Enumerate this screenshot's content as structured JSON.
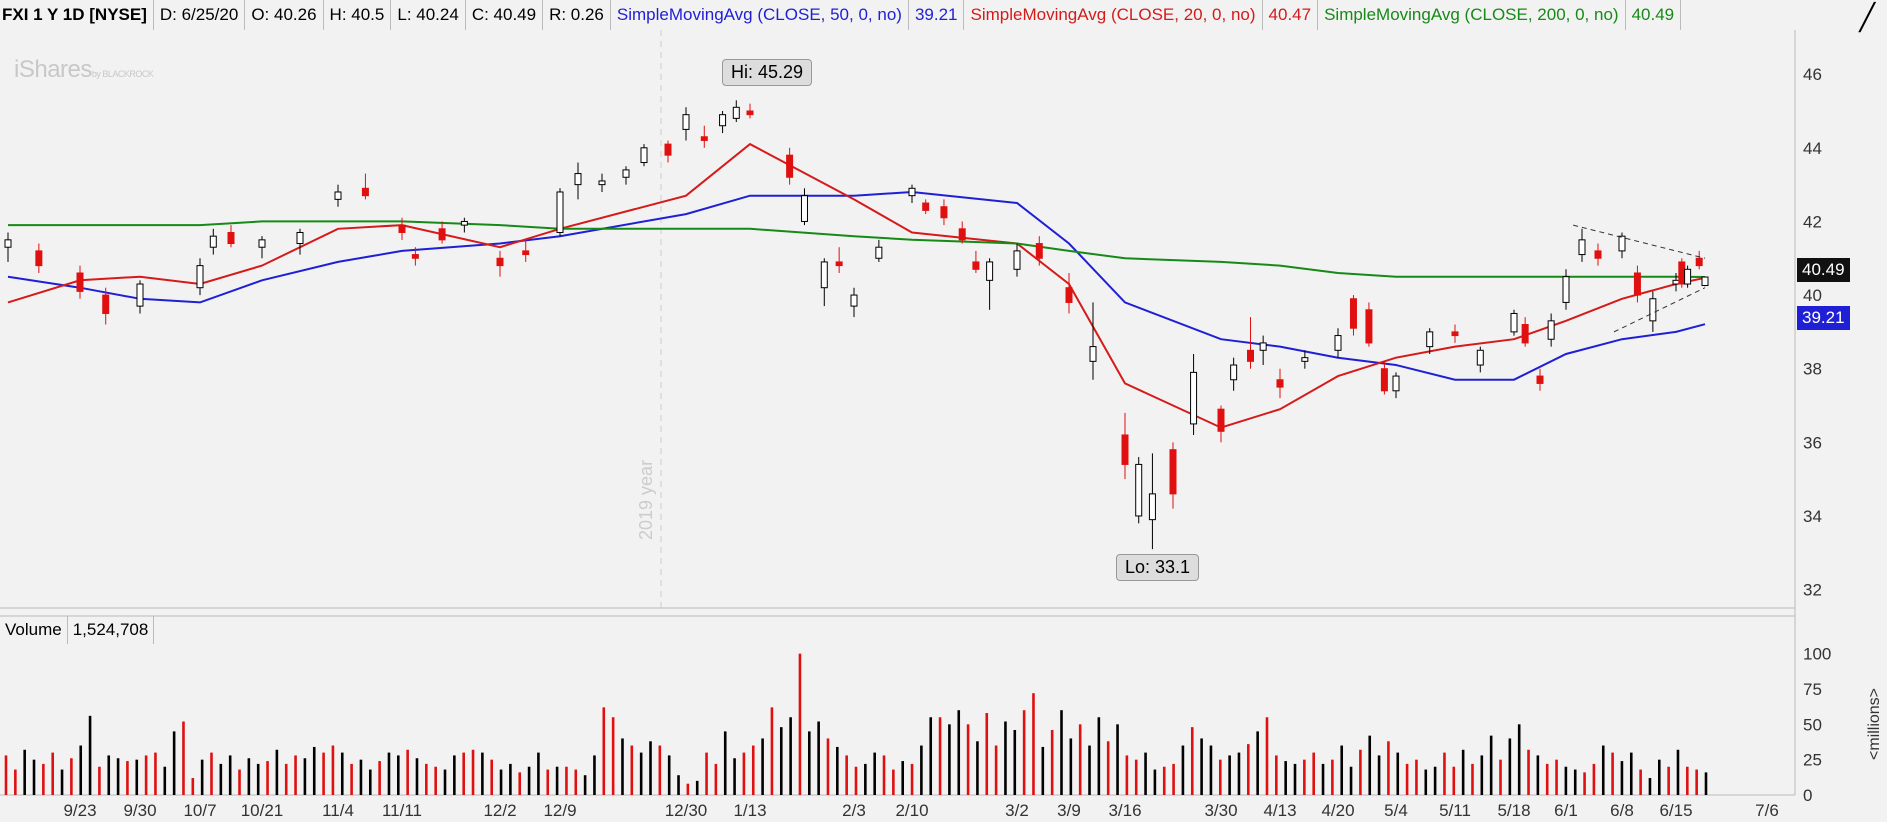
{
  "header": {
    "symbol": "FXI 1 Y 1D [NYSE]",
    "date": "D: 6/25/20",
    "open": "O: 40.26",
    "high": "H: 40.5",
    "low": "L: 40.24",
    "close": "C: 40.49",
    "range": "R: 0.26",
    "sma50_label": "SimpleMovingAvg (CLOSE, 50, 0, no)",
    "sma50_value": "39.21",
    "sma20_label": "SimpleMovingAvg (CLOSE, 20, 0, no)",
    "sma20_value": "40.47",
    "sma200_label": "SimpleMovingAvg (CLOSE, 200, 0, no)",
    "sma200_value": "40.49"
  },
  "logo": {
    "text": "iShares",
    "sub": "by BLACKROCK"
  },
  "hi_label": "Hi: 45.29",
  "lo_label": "Lo: 33.1",
  "year_marker": "2019 year",
  "price_tag": "40.49",
  "sma_tag": "39.21",
  "volume": {
    "label": "Volume",
    "value": "1,524,708",
    "unit": "<millions>"
  },
  "colors": {
    "up": "#000000",
    "down": "#e01010",
    "sma50": "#1f1fd6",
    "sma20": "#d51a1a",
    "sma200": "#168a16"
  },
  "chart_data": [
    {
      "type": "line",
      "title": "FXI 1 Y 1D [NYSE]",
      "y_ticks": [
        32,
        34,
        36,
        38,
        40,
        42,
        44,
        46
      ],
      "ylim": [
        31.5,
        47.2
      ],
      "x_ticks": [
        "9/23",
        "9/30",
        "10/7",
        "10/21",
        "11/4",
        "11/11",
        "12/2",
        "12/9",
        "12/30",
        "1/13",
        "2/3",
        "2/10",
        "3/2",
        "3/9",
        "3/16",
        "3/30",
        "4/13",
        "4/20",
        "5/4",
        "5/11",
        "5/18",
        "6/1",
        "6/8",
        "6/15",
        "7/6"
      ],
      "series": [
        {
          "name": "SimpleMovingAvg (CLOSE, 50, 0, no)",
          "color": "#1f1fd6",
          "x": [
            "9/16",
            "9/23",
            "9/30",
            "10/7",
            "10/21",
            "11/4",
            "11/11",
            "12/2",
            "12/9",
            "12/30",
            "1/13",
            "2/3",
            "2/10",
            "3/2",
            "3/9",
            "3/16",
            "3/30",
            "4/13",
            "4/20",
            "5/4",
            "5/11",
            "5/18",
            "6/1",
            "6/8",
            "6/15",
            "6/25"
          ],
          "values": [
            40.5,
            40.2,
            39.9,
            39.8,
            40.4,
            40.9,
            41.2,
            41.4,
            41.6,
            42.2,
            42.7,
            42.7,
            42.8,
            42.5,
            41.4,
            39.8,
            38.8,
            38.6,
            38.3,
            38.1,
            37.7,
            37.7,
            38.4,
            38.8,
            39.0,
            39.21
          ]
        },
        {
          "name": "SimpleMovingAvg (CLOSE, 20, 0, no)",
          "color": "#d51a1a",
          "x": [
            "9/16",
            "9/23",
            "9/30",
            "10/7",
            "10/21",
            "11/4",
            "11/11",
            "12/2",
            "12/9",
            "12/30",
            "1/13",
            "2/3",
            "2/10",
            "3/2",
            "3/9",
            "3/16",
            "3/30",
            "4/13",
            "4/20",
            "5/4",
            "5/11",
            "5/18",
            "6/1",
            "6/8",
            "6/15",
            "6/25"
          ],
          "values": [
            39.8,
            40.4,
            40.5,
            40.3,
            40.8,
            41.8,
            41.9,
            41.3,
            41.8,
            42.7,
            44.1,
            42.6,
            41.7,
            41.4,
            40.3,
            37.6,
            36.4,
            36.9,
            37.8,
            38.3,
            38.6,
            38.8,
            39.3,
            39.9,
            40.3,
            40.47
          ]
        },
        {
          "name": "SimpleMovingAvg (CLOSE, 200, 0, no)",
          "color": "#168a16",
          "x": [
            "9/16",
            "9/23",
            "9/30",
            "10/7",
            "10/21",
            "11/4",
            "11/11",
            "12/2",
            "12/9",
            "12/30",
            "1/13",
            "2/3",
            "2/10",
            "3/2",
            "3/9",
            "3/16",
            "3/30",
            "4/13",
            "4/20",
            "5/4",
            "5/11",
            "5/18",
            "6/1",
            "6/8",
            "6/15",
            "6/25"
          ],
          "values": [
            41.9,
            41.9,
            41.9,
            41.9,
            42.0,
            42.0,
            42.0,
            41.9,
            41.8,
            41.8,
            41.8,
            41.6,
            41.5,
            41.4,
            41.2,
            41.0,
            40.9,
            40.8,
            40.6,
            40.5,
            40.5,
            40.5,
            40.5,
            40.5,
            40.5,
            40.49
          ]
        }
      ],
      "candles": [
        {
          "d": "9/16",
          "o": 41.3,
          "h": 41.7,
          "l": 40.9,
          "c": 41.5
        },
        {
          "d": "9/19",
          "o": 41.2,
          "h": 41.4,
          "l": 40.6,
          "c": 40.8
        },
        {
          "d": "9/23",
          "o": 40.6,
          "h": 40.8,
          "l": 39.9,
          "c": 40.1
        },
        {
          "d": "9/26",
          "o": 40.0,
          "h": 40.2,
          "l": 39.2,
          "c": 39.5
        },
        {
          "d": "9/30",
          "o": 39.7,
          "h": 40.4,
          "l": 39.5,
          "c": 40.3
        },
        {
          "d": "10/7",
          "o": 40.2,
          "h": 41.0,
          "l": 40.0,
          "c": 40.8
        },
        {
          "d": "10/10",
          "o": 41.3,
          "h": 41.8,
          "l": 41.1,
          "c": 41.6
        },
        {
          "d": "10/14",
          "o": 41.7,
          "h": 41.9,
          "l": 41.3,
          "c": 41.4
        },
        {
          "d": "10/21",
          "o": 41.3,
          "h": 41.6,
          "l": 41.0,
          "c": 41.5
        },
        {
          "d": "10/28",
          "o": 41.4,
          "h": 41.8,
          "l": 41.1,
          "c": 41.7
        },
        {
          "d": "11/4",
          "o": 42.6,
          "h": 43.0,
          "l": 42.4,
          "c": 42.8
        },
        {
          "d": "11/7",
          "o": 42.9,
          "h": 43.3,
          "l": 42.6,
          "c": 42.7
        },
        {
          "d": "11/11",
          "o": 41.9,
          "h": 42.1,
          "l": 41.5,
          "c": 41.7
        },
        {
          "d": "11/14",
          "o": 41.1,
          "h": 41.3,
          "l": 40.8,
          "c": 41.0
        },
        {
          "d": "11/20",
          "o": 41.8,
          "h": 42.0,
          "l": 41.4,
          "c": 41.5
        },
        {
          "d": "11/25",
          "o": 41.9,
          "h": 42.1,
          "l": 41.7,
          "c": 42.0
        },
        {
          "d": "12/2",
          "o": 41.0,
          "h": 41.2,
          "l": 40.5,
          "c": 40.8
        },
        {
          "d": "12/5",
          "o": 41.2,
          "h": 41.5,
          "l": 40.9,
          "c": 41.1
        },
        {
          "d": "12/9",
          "o": 41.7,
          "h": 42.9,
          "l": 41.6,
          "c": 42.8
        },
        {
          "d": "12/12",
          "o": 43.0,
          "h": 43.6,
          "l": 42.6,
          "c": 43.3
        },
        {
          "d": "12/16",
          "o": 43.0,
          "h": 43.3,
          "l": 42.8,
          "c": 43.1
        },
        {
          "d": "12/20",
          "o": 43.2,
          "h": 43.5,
          "l": 43.0,
          "c": 43.4
        },
        {
          "d": "12/23",
          "o": 43.6,
          "h": 44.1,
          "l": 43.5,
          "c": 44.0
        },
        {
          "d": "12/27",
          "o": 44.1,
          "h": 44.2,
          "l": 43.6,
          "c": 43.8
        },
        {
          "d": "12/30",
          "o": 44.5,
          "h": 45.1,
          "l": 44.2,
          "c": 44.9
        },
        {
          "d": "1/3",
          "o": 44.3,
          "h": 44.6,
          "l": 44.0,
          "c": 44.2
        },
        {
          "d": "1/7",
          "o": 44.6,
          "h": 45.0,
          "l": 44.4,
          "c": 44.9
        },
        {
          "d": "1/10",
          "o": 44.8,
          "h": 45.29,
          "l": 44.7,
          "c": 45.1
        },
        {
          "d": "1/13",
          "o": 45.0,
          "h": 45.2,
          "l": 44.8,
          "c": 44.9
        },
        {
          "d": "1/21",
          "o": 43.8,
          "h": 44.0,
          "l": 43.0,
          "c": 43.2
        },
        {
          "d": "1/24",
          "o": 42.0,
          "h": 42.9,
          "l": 41.9,
          "c": 42.7
        },
        {
          "d": "1/28",
          "o": 40.2,
          "h": 41.0,
          "l": 39.7,
          "c": 40.9
        },
        {
          "d": "1/31",
          "o": 40.9,
          "h": 41.3,
          "l": 40.6,
          "c": 40.8
        },
        {
          "d": "2/3",
          "o": 39.7,
          "h": 40.2,
          "l": 39.4,
          "c": 40.0
        },
        {
          "d": "2/6",
          "o": 41.0,
          "h": 41.5,
          "l": 40.9,
          "c": 41.3
        },
        {
          "d": "2/10",
          "o": 42.7,
          "h": 43.0,
          "l": 42.5,
          "c": 42.9
        },
        {
          "d": "2/13",
          "o": 42.5,
          "h": 42.6,
          "l": 42.2,
          "c": 42.3
        },
        {
          "d": "2/17",
          "o": 42.4,
          "h": 42.6,
          "l": 41.9,
          "c": 42.1
        },
        {
          "d": "2/21",
          "o": 41.8,
          "h": 42.0,
          "l": 41.4,
          "c": 41.5
        },
        {
          "d": "2/24",
          "o": 40.9,
          "h": 41.2,
          "l": 40.6,
          "c": 40.7
        },
        {
          "d": "2/27",
          "o": 40.4,
          "h": 41.0,
          "l": 39.6,
          "c": 40.9
        },
        {
          "d": "3/2",
          "o": 40.7,
          "h": 41.4,
          "l": 40.5,
          "c": 41.2
        },
        {
          "d": "3/5",
          "o": 41.4,
          "h": 41.6,
          "l": 40.8,
          "c": 41.0
        },
        {
          "d": "3/9",
          "o": 40.2,
          "h": 40.6,
          "l": 39.5,
          "c": 39.8
        },
        {
          "d": "3/12",
          "o": 38.2,
          "h": 39.8,
          "l": 37.7,
          "c": 38.6
        },
        {
          "d": "3/16",
          "o": 36.2,
          "h": 36.8,
          "l": 35.0,
          "c": 35.4
        },
        {
          "d": "3/18",
          "o": 34.0,
          "h": 35.6,
          "l": 33.8,
          "c": 35.4
        },
        {
          "d": "3/20",
          "o": 33.9,
          "h": 35.7,
          "l": 33.1,
          "c": 34.6
        },
        {
          "d": "3/23",
          "o": 35.8,
          "h": 36.0,
          "l": 34.2,
          "c": 34.6
        },
        {
          "d": "3/26",
          "o": 36.5,
          "h": 38.4,
          "l": 36.2,
          "c": 37.9
        },
        {
          "d": "3/30",
          "o": 36.9,
          "h": 37.0,
          "l": 36.0,
          "c": 36.3
        },
        {
          "d": "4/2",
          "o": 37.7,
          "h": 38.3,
          "l": 37.4,
          "c": 38.1
        },
        {
          "d": "4/6",
          "o": 38.5,
          "h": 39.4,
          "l": 38.0,
          "c": 38.2
        },
        {
          "d": "4/9",
          "o": 38.5,
          "h": 38.9,
          "l": 38.1,
          "c": 38.7
        },
        {
          "d": "4/13",
          "o": 37.7,
          "h": 38.0,
          "l": 37.2,
          "c": 37.5
        },
        {
          "d": "4/16",
          "o": 38.2,
          "h": 38.5,
          "l": 38.0,
          "c": 38.3
        },
        {
          "d": "4/20",
          "o": 38.5,
          "h": 39.1,
          "l": 38.3,
          "c": 38.9
        },
        {
          "d": "4/24",
          "o": 39.9,
          "h": 40.0,
          "l": 38.9,
          "c": 39.1
        },
        {
          "d": "4/28",
          "o": 39.6,
          "h": 39.8,
          "l": 38.6,
          "c": 38.7
        },
        {
          "d": "5/1",
          "o": 38.0,
          "h": 38.2,
          "l": 37.3,
          "c": 37.4
        },
        {
          "d": "5/4",
          "o": 37.4,
          "h": 37.9,
          "l": 37.2,
          "c": 37.8
        },
        {
          "d": "5/8",
          "o": 38.6,
          "h": 39.1,
          "l": 38.4,
          "c": 39.0
        },
        {
          "d": "5/11",
          "o": 39.0,
          "h": 39.2,
          "l": 38.7,
          "c": 38.9
        },
        {
          "d": "5/14",
          "o": 38.1,
          "h": 38.6,
          "l": 37.9,
          "c": 38.5
        },
        {
          "d": "5/18",
          "o": 39.0,
          "h": 39.6,
          "l": 38.9,
          "c": 39.5
        },
        {
          "d": "5/21",
          "o": 39.2,
          "h": 39.4,
          "l": 38.6,
          "c": 38.7
        },
        {
          "d": "5/25",
          "o": 37.8,
          "h": 38.0,
          "l": 37.4,
          "c": 37.6
        },
        {
          "d": "5/28",
          "o": 38.8,
          "h": 39.5,
          "l": 38.6,
          "c": 39.3
        },
        {
          "d": "6/1",
          "o": 39.8,
          "h": 40.7,
          "l": 39.6,
          "c": 40.5
        },
        {
          "d": "6/3",
          "o": 41.1,
          "h": 41.8,
          "l": 40.9,
          "c": 41.5
        },
        {
          "d": "6/5",
          "o": 41.2,
          "h": 41.4,
          "l": 40.8,
          "c": 41.0
        },
        {
          "d": "6/8",
          "o": 41.2,
          "h": 41.7,
          "l": 41.0,
          "c": 41.6
        },
        {
          "d": "6/10",
          "o": 40.6,
          "h": 40.8,
          "l": 39.8,
          "c": 40.0
        },
        {
          "d": "6/12",
          "o": 39.3,
          "h": 40.1,
          "l": 39.0,
          "c": 39.9
        },
        {
          "d": "6/15",
          "o": 40.3,
          "h": 40.6,
          "l": 40.1,
          "c": 40.4
        },
        {
          "d": "6/17",
          "o": 40.9,
          "h": 41.0,
          "l": 40.2,
          "c": 40.3
        },
        {
          "d": "6/19",
          "o": 40.3,
          "h": 40.8,
          "l": 40.2,
          "c": 40.7
        },
        {
          "d": "6/23",
          "o": 41.0,
          "h": 41.2,
          "l": 40.7,
          "c": 40.8
        },
        {
          "d": "6/25",
          "o": 40.26,
          "h": 40.5,
          "l": 40.24,
          "c": 40.49
        }
      ]
    },
    {
      "type": "bar",
      "title": "Volume",
      "ylabel": "<millions>",
      "y_ticks": [
        0,
        25,
        50,
        75,
        100
      ],
      "ylim": [
        0,
        104
      ],
      "values": [
        28,
        18,
        32,
        25,
        22,
        30,
        18,
        26,
        35,
        56,
        20,
        28,
        26,
        24,
        25,
        28,
        30,
        20,
        45,
        52,
        12,
        25,
        30,
        22,
        28,
        18,
        26,
        22,
        24,
        32,
        22,
        28,
        26,
        34,
        30,
        35,
        30,
        22,
        25,
        18,
        24,
        30,
        28,
        32,
        26,
        22,
        20,
        18,
        28,
        30,
        32,
        30,
        25,
        18,
        22,
        16,
        20,
        30,
        18,
        20,
        20,
        18,
        14,
        28,
        62,
        55,
        40,
        35,
        30,
        38,
        35,
        28,
        14,
        8,
        10,
        30,
        22,
        45,
        26,
        30,
        35,
        40,
        62,
        48,
        55,
        100,
        45,
        52,
        40,
        34,
        28,
        20,
        22,
        30,
        28,
        18,
        24,
        22,
        35,
        55,
        55,
        50,
        60,
        50,
        38,
        58,
        35,
        52,
        46,
        60,
        72,
        34,
        46,
        60,
        40,
        50,
        35,
        55,
        38,
        50,
        28,
        25,
        30,
        18,
        20,
        22,
        35,
        48,
        40,
        35,
        25,
        28,
        30,
        36,
        45,
        55,
        28,
        24,
        22,
        25,
        30,
        22,
        25,
        35,
        20,
        32,
        42,
        28,
        38,
        30,
        22,
        25,
        18,
        20,
        30,
        20,
        32,
        22,
        28,
        42,
        25,
        40,
        50,
        32,
        28,
        22,
        25,
        20,
        18,
        16,
        22,
        35,
        30,
        24,
        30,
        18,
        12,
        25,
        20,
        32,
        20,
        18,
        16
      ],
      "up_down": "alternating per candle color"
    }
  ]
}
